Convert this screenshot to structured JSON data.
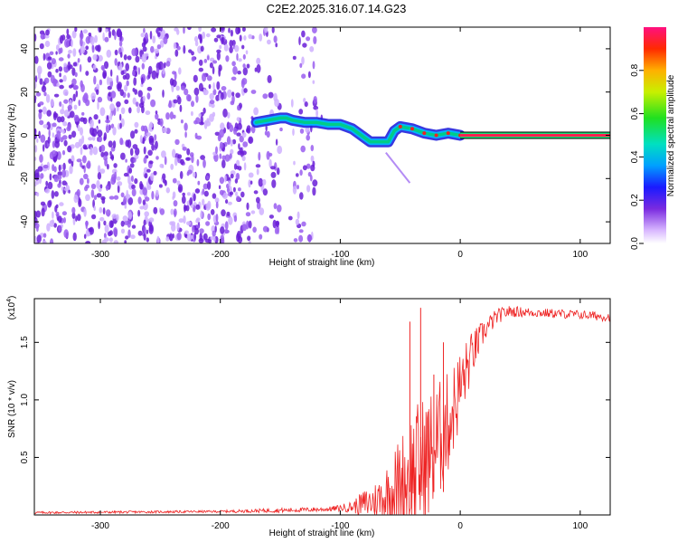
{
  "title": "C2E2.2025.316.07.14.G23",
  "colors": {
    "snr_line": "#ee2222",
    "ridge_low": "#2222dd",
    "ridge_mid": "#00cc88",
    "ridge_high": "#ee2222",
    "noise": "#7733dd"
  },
  "chart_data": [
    {
      "type": "heatmap",
      "title": "C2E2.2025.316.07.14.G23",
      "xlabel": "Height of straight line (km)",
      "ylabel": "Frequency (Hz)",
      "xlim": [
        -355,
        125
      ],
      "ylim": [
        -50,
        50
      ],
      "xticks": [
        -300,
        -200,
        -100,
        0,
        100
      ],
      "yticks": [
        -40,
        -20,
        0,
        20,
        40
      ],
      "ridge": {
        "x": [
          -170,
          -160,
          -150,
          -145,
          -140,
          -130,
          -120,
          -110,
          -100,
          -90,
          -80,
          -75,
          -70,
          -60,
          -55,
          -50,
          -40,
          -30,
          -20,
          -10,
          0
        ],
        "freq": [
          6,
          7,
          8,
          8,
          7,
          6,
          6,
          5,
          5,
          3,
          -1,
          -3,
          -3,
          -3,
          2,
          4,
          3,
          1,
          0,
          1,
          0
        ]
      },
      "steady_line": {
        "x_start": 0,
        "x_end": 125,
        "freq": 0
      },
      "noise_region_x": [
        -355,
        -110
      ],
      "colorbar": {
        "label": "Normalized spectral amplitude",
        "range": [
          0,
          1
        ],
        "ticks": [
          "0.0",
          "0.2",
          "0.4",
          "0.6",
          "0.8"
        ]
      }
    },
    {
      "type": "line",
      "xlabel": "Height of straight line (km)",
      "ylabel": "SNR (10 * v/v)",
      "yscale_label": "(x10",
      "yscale_exp": "4",
      "xlim": [
        -355,
        125
      ],
      "ylim": [
        0,
        1.88
      ],
      "xticks": [
        -300,
        -200,
        -100,
        0,
        100
      ],
      "yticks": [
        "0.5",
        "1.0",
        "1.5"
      ],
      "envelope": {
        "x": [
          -355,
          -200,
          -150,
          -110,
          -100,
          -90,
          -80,
          -70,
          -60,
          -50,
          -40,
          -30,
          -20,
          -10,
          0,
          10,
          20,
          30,
          40,
          60,
          80,
          100,
          125
        ],
        "base": [
          0.02,
          0.03,
          0.04,
          0.05,
          0.06,
          0.07,
          0.1,
          0.12,
          0.18,
          0.25,
          0.35,
          0.45,
          0.6,
          0.8,
          1.1,
          1.4,
          1.6,
          1.72,
          1.77,
          1.76,
          1.75,
          1.74,
          1.72
        ],
        "amp": [
          0.01,
          0.01,
          0.02,
          0.02,
          0.03,
          0.05,
          0.12,
          0.18,
          0.3,
          0.45,
          0.6,
          0.6,
          0.55,
          0.45,
          0.35,
          0.2,
          0.1,
          0.07,
          0.05,
          0.04,
          0.04,
          0.04,
          0.04
        ]
      },
      "peaks": [
        {
          "x": -42,
          "y": 1.68
        },
        {
          "x": -33,
          "y": 1.8
        },
        {
          "x": -22,
          "y": 1.22
        },
        {
          "x": -14,
          "y": 1.5
        }
      ]
    }
  ]
}
